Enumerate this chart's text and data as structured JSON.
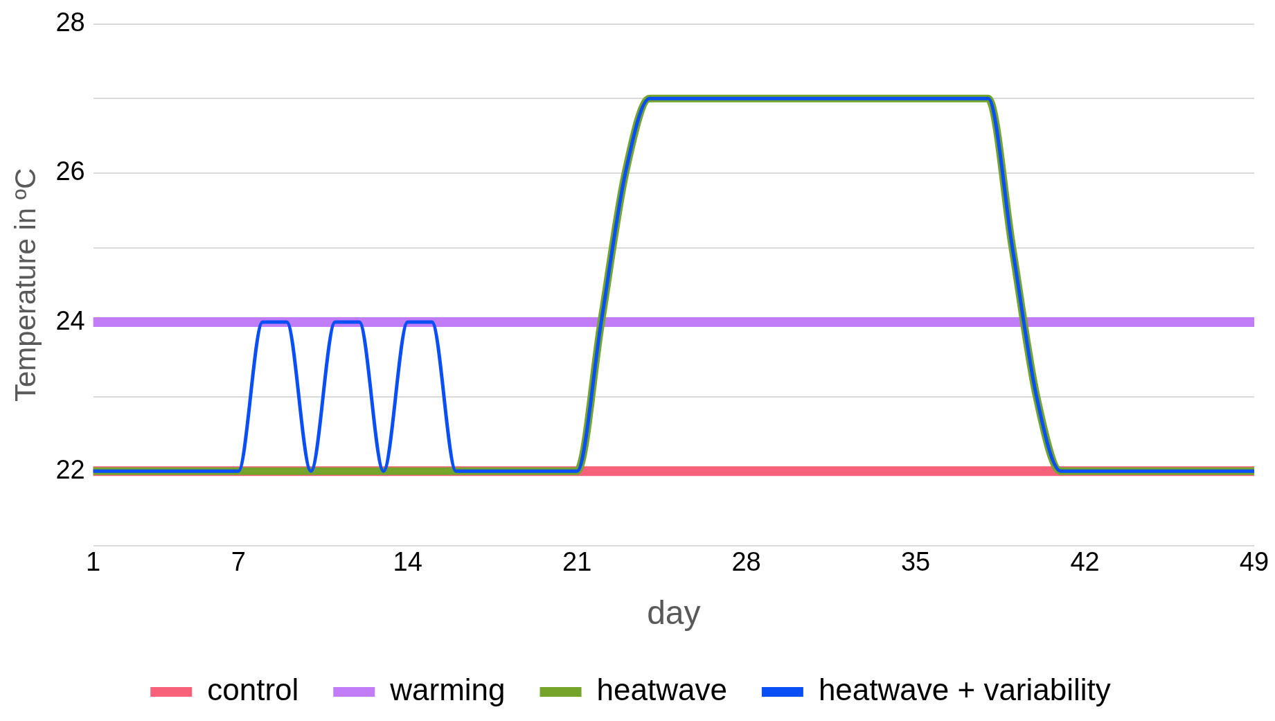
{
  "chart_data": {
    "type": "line",
    "xlabel": "day",
    "ylabel": "Temperature in ºC",
    "x": [
      1,
      2,
      3,
      4,
      5,
      6,
      7,
      8,
      9,
      10,
      11,
      12,
      13,
      14,
      15,
      16,
      17,
      18,
      19,
      20,
      21,
      22,
      23,
      24,
      25,
      26,
      27,
      28,
      29,
      30,
      31,
      32,
      33,
      34,
      35,
      36,
      37,
      38,
      39,
      40,
      41,
      42,
      43,
      44,
      45,
      46,
      47,
      48,
      49
    ],
    "xlim": [
      1,
      49
    ],
    "xticks": [
      1,
      7,
      14,
      21,
      28,
      35,
      42,
      49
    ],
    "ylim": [
      21,
      28
    ],
    "yticks": [
      {
        "value": 21,
        "label": null
      },
      22,
      {
        "value": 23,
        "label": null
      },
      24,
      {
        "value": 25,
        "label": null
      },
      26,
      {
        "value": 27,
        "label": null
      },
      28
    ],
    "grid": "y",
    "legend": "bottom",
    "marker": "none",
    "series": [
      {
        "name": "control",
        "color": "#f7617a",
        "values": [
          22,
          22,
          22,
          22,
          22,
          22,
          22,
          22,
          22,
          22,
          22,
          22,
          22,
          22,
          22,
          22,
          22,
          22,
          22,
          22,
          22,
          22,
          22,
          22,
          22,
          22,
          22,
          22,
          22,
          22,
          22,
          22,
          22,
          22,
          22,
          22,
          22,
          22,
          22,
          22,
          22,
          22,
          22,
          22,
          22,
          22,
          22,
          22,
          22
        ]
      },
      {
        "name": "warming",
        "color": "#c17cf7",
        "values": [
          24,
          24,
          24,
          24,
          24,
          24,
          24,
          24,
          24,
          24,
          24,
          24,
          24,
          24,
          24,
          24,
          24,
          24,
          24,
          24,
          24,
          24,
          24,
          24,
          24,
          24,
          24,
          24,
          24,
          24,
          24,
          24,
          24,
          24,
          24,
          24,
          24,
          24,
          24,
          24,
          24,
          24,
          24,
          24,
          24,
          24,
          24,
          24,
          24
        ]
      },
      {
        "name": "heatwave",
        "color": "#74a52a",
        "values": [
          22,
          22,
          22,
          22,
          22,
          22,
          22,
          22,
          22,
          22,
          22,
          22,
          22,
          22,
          22,
          22,
          22,
          22,
          22,
          22,
          22,
          24,
          26,
          27,
          27,
          27,
          27,
          27,
          27,
          27,
          27,
          27,
          27,
          27,
          27,
          27,
          27,
          27,
          25,
          23,
          22,
          22,
          22,
          22,
          22,
          22,
          22,
          22,
          22
        ]
      },
      {
        "name": "heatwave + variability",
        "color": "#0a4ff5",
        "values": [
          22,
          22,
          22,
          22,
          22,
          22,
          22,
          24,
          24,
          22,
          24,
          24,
          22,
          24,
          24,
          22,
          22,
          22,
          22,
          22,
          22,
          24,
          26,
          27,
          27,
          27,
          27,
          27,
          27,
          27,
          27,
          27,
          27,
          27,
          27,
          27,
          27,
          27,
          25,
          23,
          22,
          22,
          22,
          22,
          22,
          22,
          22,
          22,
          22
        ]
      }
    ]
  }
}
